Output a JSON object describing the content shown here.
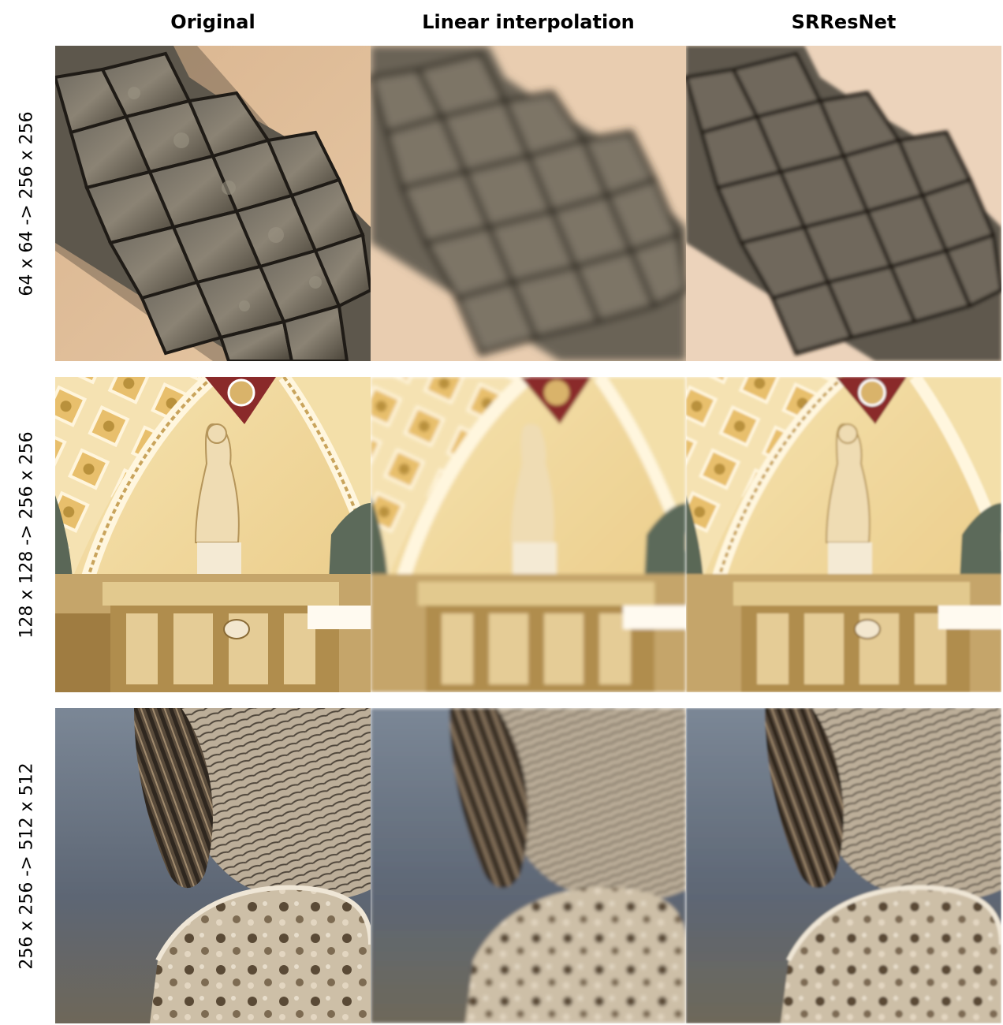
{
  "columns": [
    "Original",
    "Linear interpolation",
    "SRResNet"
  ],
  "rows": [
    {
      "label": "64 x 64 -> 256 x 256",
      "subject": "crocodile tail scales on sand"
    },
    {
      "label": "128 x 128 -> 256 x 256",
      "subject": "ornate arched ceiling with statue"
    },
    {
      "label": "256 x 256 -> 512 x 512",
      "subject": "bird feathers perched on rock"
    }
  ]
}
